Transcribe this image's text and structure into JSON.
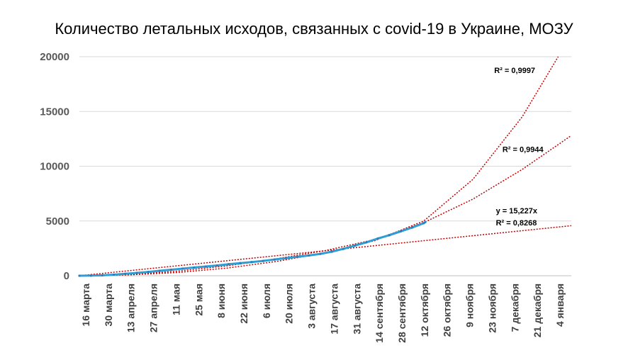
{
  "chart_data": {
    "type": "line",
    "title": "Количество летальных исходов, связанных с covid-19 в Украине, МОЗУ",
    "xlabel": "",
    "ylabel": "",
    "ylim": [
      0,
      20000
    ],
    "yticks": [
      "0",
      "5000",
      "10000",
      "15000",
      "20000"
    ],
    "xlim": [
      0,
      300
    ],
    "x_tick_labels": [
      "16 марта",
      "30 марта",
      "13 апреля",
      "27 апреля",
      "11 мая",
      "25 мая",
      "8 июня",
      "22 июня",
      "6 июля",
      "20 июля",
      "3 августа",
      "17 августа",
      "31 августа",
      "14 сентября",
      "28 сентября",
      "12 октября",
      "26 октября",
      "9 ноября",
      "23 ноября",
      "7 декабря",
      "21 декабря",
      "4 января"
    ],
    "grid": true,
    "colors": {
      "series": "#2e9fd4",
      "trend": "#c00000",
      "grid": "#d9d9d9",
      "axis_text": "#595959"
    },
    "series": [
      {
        "x": [
          0,
          7,
          14,
          21,
          28,
          35,
          42,
          49,
          56,
          63,
          70,
          77,
          84,
          91,
          98,
          105,
          112,
          119,
          126,
          133,
          140,
          147,
          154,
          161,
          168,
          175,
          182,
          189,
          196,
          203,
          210,
          211
        ],
        "values": [
          0,
          10,
          40,
          100,
          180,
          260,
          350,
          450,
          550,
          650,
          750,
          840,
          940,
          1050,
          1150,
          1250,
          1350,
          1480,
          1610,
          1730,
          1850,
          2000,
          2200,
          2450,
          2750,
          3050,
          3400,
          3700,
          4050,
          4400,
          4800,
          4900
        ]
      }
    ],
    "trendlines": [
      {
        "kind": "polynomial-steep",
        "x": [
          0,
          30,
          60,
          90,
          120,
          150,
          180,
          210,
          240,
          270,
          292
        ],
        "values": [
          0,
          80,
          300,
          700,
          1300,
          2100,
          3200,
          5000,
          8800,
          14500,
          20000
        ]
      },
      {
        "kind": "polynomial",
        "x": [
          0,
          30,
          60,
          90,
          120,
          150,
          180,
          210,
          240,
          270,
          300
        ],
        "values": [
          0,
          110,
          420,
          900,
          1550,
          2300,
          3300,
          4850,
          7000,
          9700,
          12800
        ]
      },
      {
        "kind": "linear",
        "x": [
          0,
          300
        ],
        "values": [
          0,
          4568
        ]
      }
    ],
    "annotations": [
      {
        "text": "R² = 0,9997",
        "x": 253,
        "y": 18500
      },
      {
        "text": "R² = 0,9944",
        "x": 258,
        "y": 11300
      },
      {
        "text": "y = 15,227x",
        "x": 254,
        "y": 5700
      },
      {
        "text": "R² = 0,8268",
        "x": 254,
        "y": 4600
      }
    ]
  }
}
